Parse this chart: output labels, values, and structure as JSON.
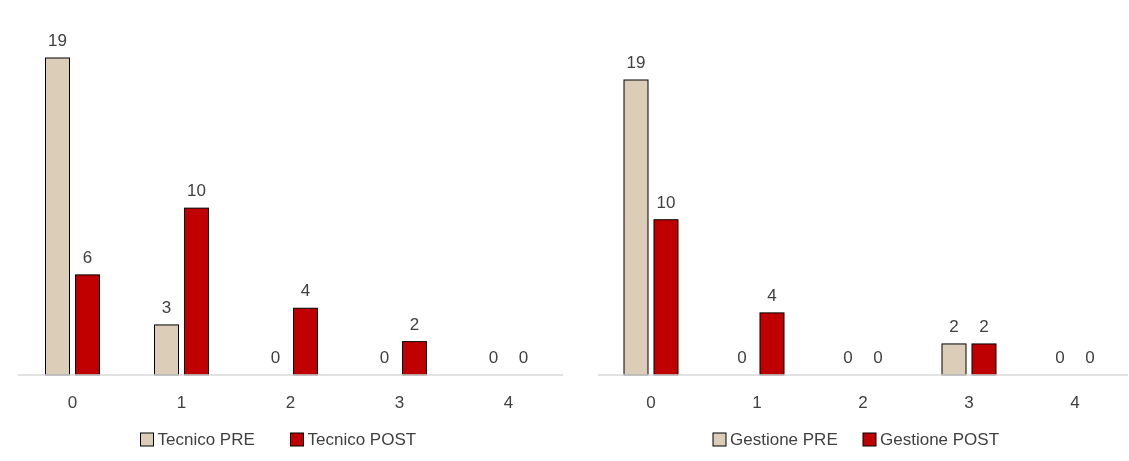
{
  "chart_data": [
    {
      "type": "bar",
      "categories": [
        "0",
        "1",
        "2",
        "3",
        "4"
      ],
      "series": [
        {
          "name": "Tecnico PRE",
          "color": "#dccdb9",
          "values": [
            19,
            3,
            0,
            0,
            0
          ]
        },
        {
          "name": "Tecnico POST",
          "color": "#c00000",
          "values": [
            6,
            10,
            4,
            2,
            0
          ]
        }
      ],
      "data_labels": true,
      "legend": "bottom"
    },
    {
      "type": "bar",
      "categories": [
        "0",
        "1",
        "2",
        "3",
        "4"
      ],
      "series": [
        {
          "name": "Gestione PRE",
          "color": "#dccdb9",
          "values": [
            19,
            0,
            0,
            2,
            0
          ]
        },
        {
          "name": "Gestione POST",
          "color": "#c00000",
          "values": [
            10,
            4,
            0,
            2,
            0
          ]
        }
      ],
      "data_labels": true,
      "legend": "bottom"
    }
  ]
}
